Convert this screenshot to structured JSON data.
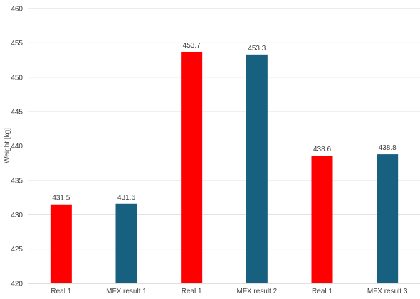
{
  "chart_data": {
    "type": "bar",
    "title": "",
    "xlabel": "",
    "ylabel": "Weight [kg]",
    "ylim": [
      420,
      460
    ],
    "yticks": [
      420,
      425,
      430,
      435,
      440,
      445,
      450,
      455,
      460
    ],
    "grid": true,
    "legend": "none",
    "categories": [
      "Real 1",
      "MFX result 1",
      "Real 1",
      "MFX result 2",
      "Real 1",
      "MFX result 3"
    ],
    "values": [
      431.5,
      431.6,
      453.7,
      453.3,
      438.6,
      438.8
    ],
    "value_labels": [
      "431.5",
      "431.6",
      "453.7",
      "453.3",
      "438.6",
      "438.8"
    ],
    "colors": [
      "#ff0000",
      "#17607f",
      "#ff0000",
      "#17607f",
      "#ff0000",
      "#17607f"
    ]
  }
}
